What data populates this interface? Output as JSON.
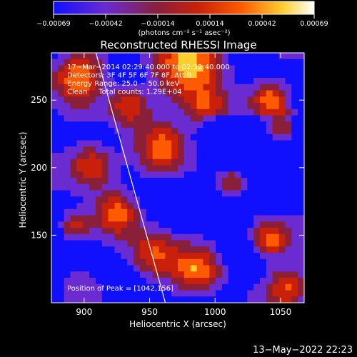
{
  "colorbar": {
    "tick_labels": [
      "−0.00069",
      "−0.00042",
      "−0.00014",
      "0.00014",
      "0.00042",
      "0.00069"
    ],
    "units": "(photons cm⁻² s⁻¹ asec⁻²)",
    "colors": [
      "#1010ff",
      "#6a2bd0",
      "#8a1f3a",
      "#c8200a",
      "#ff5a00",
      "#ffcf30",
      "#ffffff"
    ]
  },
  "chart_data": {
    "type": "heatmap",
    "title": "Reconstructed RHESSI Image",
    "xlabel": "Heliocentric X (arcsec)",
    "ylabel": "Heliocentric Y (arcsec)",
    "xlim": [
      875,
      1068
    ],
    "ylim": [
      100,
      285
    ],
    "x_ticks": [
      900,
      950,
      1000,
      1050
    ],
    "y_ticks": [
      150,
      200,
      250
    ],
    "limb_line": [
      [
        909,
        285
      ],
      [
        962,
        100
      ]
    ],
    "peak": [
      1042,
      156
    ],
    "info_lines": [
      "17−Mar−2014 02:29:40.000 to 02:32:40.000",
      "Detectors: 3F 4F 5F 6F 7F 8F, Att 0",
      "Energy Range: 25.0 − 50.0 keV",
      "Clean     Total counts: 1.29E+04"
    ],
    "peak_label": "Position of Peak = [1042,156]"
  },
  "footer": {
    "timestamp": "13−May−2022 22:23"
  }
}
